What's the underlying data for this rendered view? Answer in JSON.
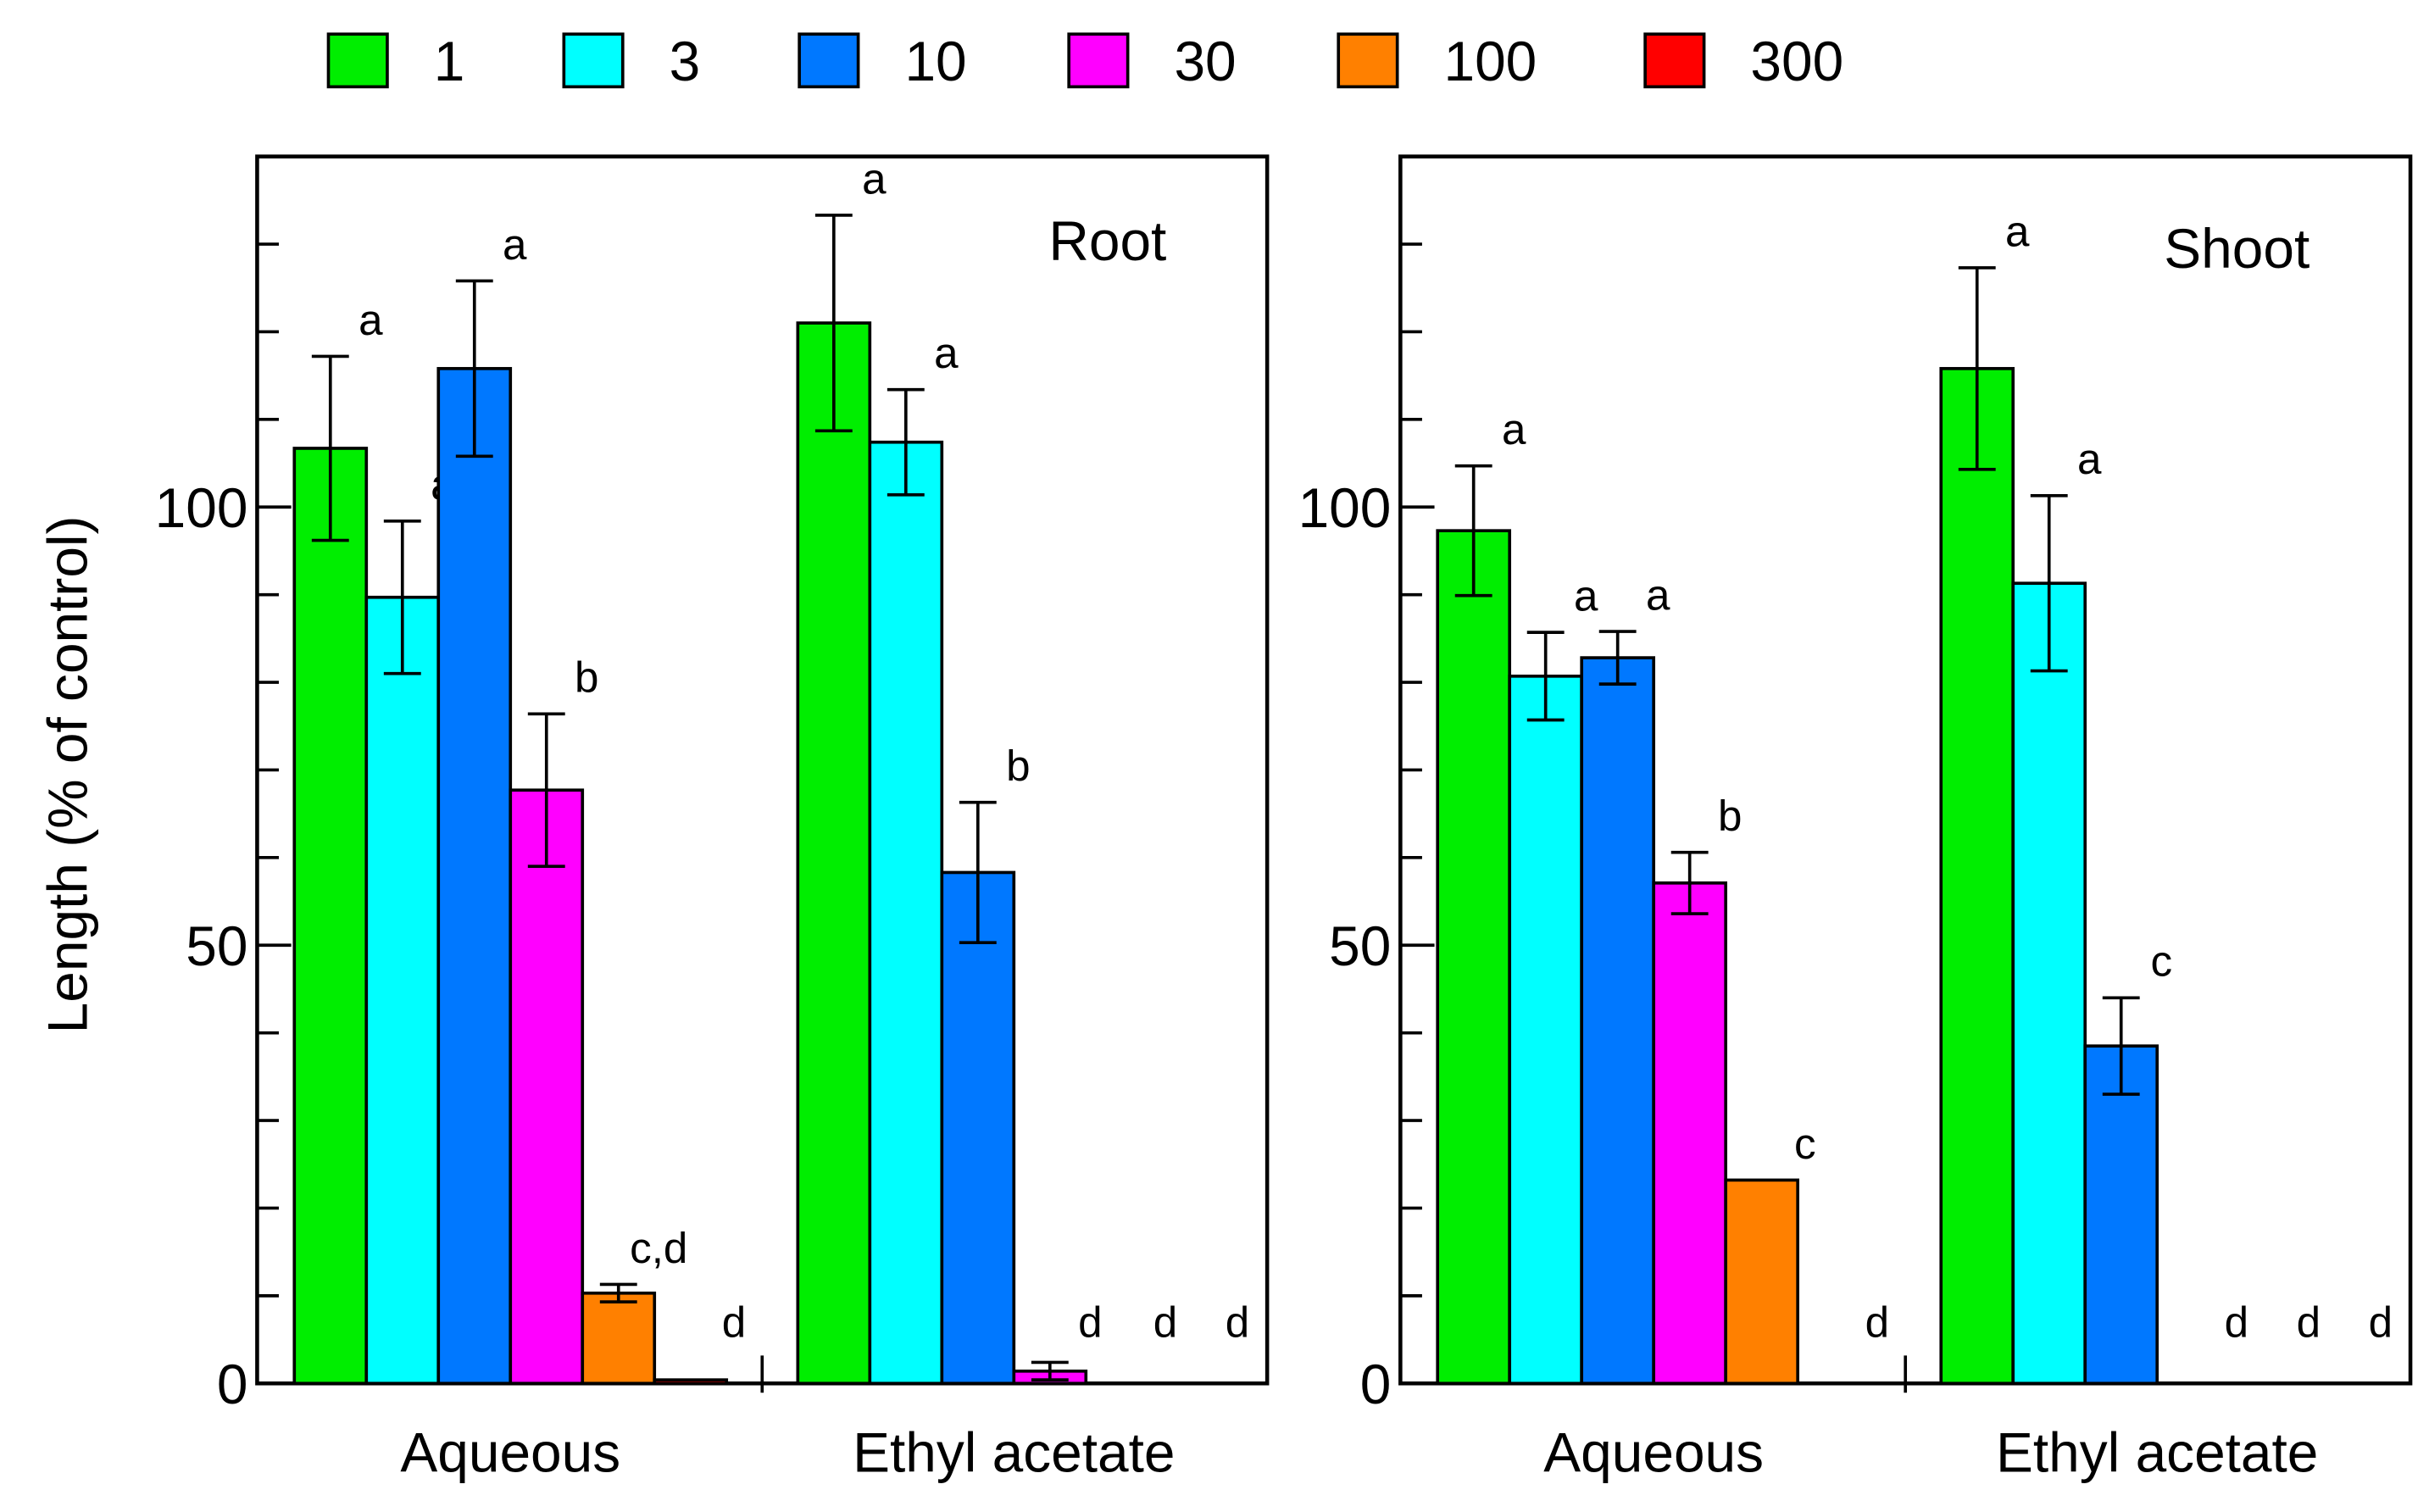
{
  "chart_data": {
    "type": "bar",
    "ylabel": "Length  (% of control)",
    "ylim": [
      0,
      140
    ],
    "yticks_major": [
      0,
      50,
      100
    ],
    "ytick_minor_step": 10,
    "legend": {
      "placement": "top",
      "entries": [
        {
          "name": "1",
          "color": "#00ee00"
        },
        {
          "name": "3",
          "color": "#00ffff"
        },
        {
          "name": "10",
          "color": "#0078ff"
        },
        {
          "name": "30",
          "color": "#ff00ff"
        },
        {
          "name": "100",
          "color": "#ff8000"
        },
        {
          "name": "300",
          "color": "#ff0000"
        }
      ]
    },
    "panels": [
      {
        "title": "Root",
        "groups": [
          {
            "category": "Aqueous",
            "values": [
              106.7,
              89.7,
              115.8,
              67.7,
              10.3,
              0.4
            ],
            "errors": [
              10.5,
              8.7,
              10,
              8.7,
              1,
              0
            ],
            "letters": [
              "a",
              "a",
              "a",
              "b",
              "c,d",
              "d"
            ]
          },
          {
            "category": "Ethyl acetate",
            "values": [
              121,
              107.4,
              58.3,
              1.4,
              0,
              0
            ],
            "errors": [
              12.3,
              6,
              8,
              1,
              0,
              0
            ],
            "letters": [
              "a",
              "a",
              "b",
              "d",
              "d",
              "d"
            ]
          }
        ]
      },
      {
        "title": "Shoot",
        "groups": [
          {
            "category": "Aqueous",
            "values": [
              97.3,
              80.7,
              82.8,
              57.1,
              23.2,
              0
            ],
            "errors": [
              7.4,
              5,
              3,
              3.5,
              0,
              0
            ],
            "letters": [
              "a",
              "a",
              "a",
              "b",
              "c",
              "d"
            ]
          },
          {
            "category": "Ethyl acetate",
            "values": [
              115.8,
              91.3,
              38.5,
              0,
              0,
              0
            ],
            "errors": [
              11.5,
              10,
              5.5,
              0,
              0,
              0
            ],
            "letters": [
              "a",
              "a",
              "c",
              "d",
              "d",
              "d"
            ]
          }
        ]
      }
    ]
  }
}
